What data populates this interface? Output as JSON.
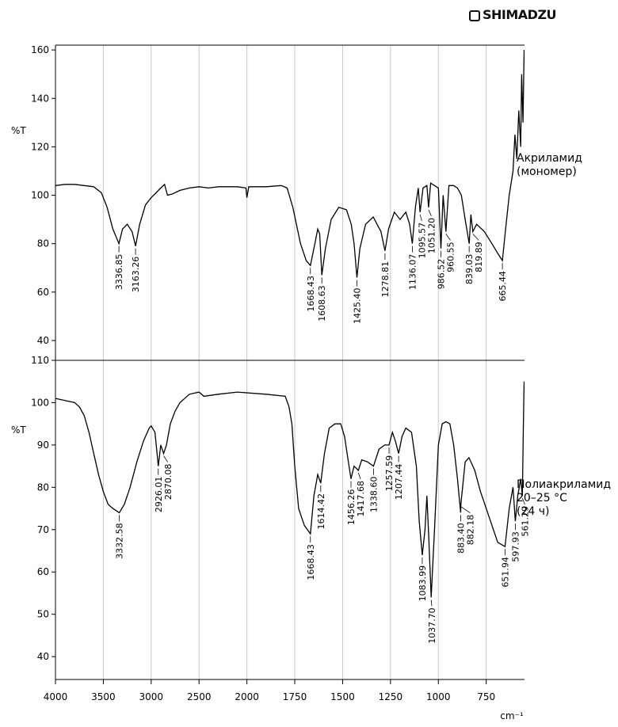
{
  "logo": "SHIMADZU",
  "chart_data": [
    {
      "type": "line",
      "ylabel": "%T",
      "ylim": [
        31.8,
        162
      ],
      "yticks": [
        40,
        60,
        80,
        100,
        120,
        140,
        160
      ],
      "grid": true,
      "x": [
        4000,
        3900,
        3800,
        3700,
        3600,
        3520,
        3460,
        3400,
        3336.85,
        3300,
        3250,
        3200,
        3163.26,
        3120,
        3060,
        3000,
        2950,
        2900,
        2860,
        2830,
        2780,
        2700,
        2600,
        2500,
        2400,
        2300,
        2100,
        2010,
        2000,
        1990,
        1900,
        1820,
        1790,
        1760,
        1720,
        1690,
        1668.43,
        1645,
        1630,
        1620,
        1608.63,
        1590,
        1560,
        1520,
        1480,
        1455,
        1440,
        1425.4,
        1410,
        1380,
        1340,
        1300,
        1278.81,
        1260,
        1230,
        1200,
        1170,
        1150,
        1136.07,
        1120,
        1105,
        1095.57,
        1080,
        1060,
        1051.2,
        1040,
        1020,
        1000,
        986.52,
        975,
        960.55,
        945,
        920,
        900,
        880,
        860,
        839.03,
        830,
        819.89,
        800,
        760,
        720,
        690,
        665.44,
        650,
        630,
        610,
        600,
        590,
        580,
        570,
        565,
        558,
        552
      ],
      "series": [
        {
          "name": "Акриламид (мономер)",
          "color": "#000000",
          "values": [
            104,
            104.5,
            104.5,
            104,
            103.5,
            101,
            95,
            86,
            80,
            86,
            88,
            85,
            79,
            88,
            96,
            99,
            101,
            103,
            104.5,
            100,
            100.5,
            102,
            103,
            103.5,
            103,
            103.5,
            103.5,
            103,
            99,
            103.5,
            103.5,
            104,
            103,
            95,
            80,
            73,
            71,
            80,
            86,
            84,
            67,
            78,
            90,
            95,
            94,
            88,
            80,
            66,
            78,
            88,
            91,
            85,
            77,
            86,
            93,
            90,
            93,
            88,
            80,
            95,
            103,
            93,
            103,
            104,
            95,
            105,
            104,
            103,
            78,
            100,
            85,
            104,
            104,
            103,
            100,
            90,
            80,
            92,
            85,
            88,
            85,
            80,
            76,
            73,
            85,
            100,
            110,
            125,
            115,
            135,
            120,
            150,
            130,
            160
          ]
        }
      ],
      "peaks": [
        {
          "value": 3336.85,
          "label": "3336.85"
        },
        {
          "value": 3163.26,
          "label": "3163.26"
        },
        {
          "value": 1668.43,
          "label": "1668.43"
        },
        {
          "value": 1608.63,
          "label": "1608.63"
        },
        {
          "value": 1425.4,
          "label": "1425.40"
        },
        {
          "value": 1278.81,
          "label": "1278.81"
        },
        {
          "value": 1136.07,
          "label": "1136.07"
        },
        {
          "value": 1095.57,
          "label": "1095.57"
        },
        {
          "value": 1051.2,
          "label": "1051.20"
        },
        {
          "value": 986.52,
          "label": "986.52"
        },
        {
          "value": 960.55,
          "label": "960.55"
        },
        {
          "value": 839.03,
          "label": "839.03"
        },
        {
          "value": 819.89,
          "label": "819.89"
        },
        {
          "value": 665.44,
          "label": "665.44"
        }
      ]
    },
    {
      "type": "line",
      "ylabel": "%T",
      "xlabel": "cm⁻¹",
      "xlim": [
        4000,
        550
      ],
      "xticks": [
        4000,
        3500,
        3000,
        2500,
        2000,
        1750,
        1500,
        1250,
        1000,
        750
      ],
      "ylim": [
        34.6,
        110
      ],
      "yticks": [
        40,
        50,
        60,
        70,
        80,
        90,
        100,
        110
      ],
      "grid": true,
      "x": [
        4000,
        3900,
        3800,
        3750,
        3700,
        3650,
        3600,
        3550,
        3500,
        3450,
        3400,
        3332.58,
        3280,
        3220,
        3150,
        3080,
        3020,
        3000,
        2960,
        2926.01,
        2900,
        2870.08,
        2840,
        2800,
        2750,
        2700,
        2600,
        2500,
        2450,
        2300,
        2100,
        1900,
        1800,
        1780,
        1765,
        1750,
        1730,
        1700,
        1668.43,
        1650,
        1630,
        1614.42,
        1595,
        1570,
        1540,
        1510,
        1490,
        1470,
        1456.26,
        1440,
        1417.68,
        1400,
        1370,
        1338.6,
        1310,
        1280,
        1257.59,
        1240,
        1225,
        1207.44,
        1190,
        1170,
        1140,
        1115,
        1100,
        1083.99,
        1070,
        1060,
        1050,
        1037.7,
        1020,
        1000,
        980,
        960,
        940,
        920,
        900,
        883.4,
        882.18,
        860,
        840,
        810,
        780,
        750,
        720,
        690,
        651.94,
        630,
        610,
        597.93,
        585,
        570,
        561.29,
        556,
        552
      ],
      "series": [
        {
          "name": "Полиакриламид 20–25 °C (24 ч)",
          "color": "#000000",
          "values": [
            101,
            100.5,
            100,
            99,
            97,
            93,
            88,
            83,
            79,
            76,
            75,
            74,
            76,
            80,
            86,
            91,
            94,
            94.5,
            93,
            85,
            90,
            88,
            90,
            95,
            98,
            100,
            102,
            102.5,
            101.5,
            102,
            102.5,
            102,
            101.5,
            99,
            95,
            85,
            75,
            71,
            69,
            78,
            83,
            81,
            88,
            94,
            95,
            95,
            92,
            86,
            82,
            85,
            84,
            86.5,
            86,
            85,
            89,
            90,
            90,
            93,
            91,
            88,
            92,
            94,
            93,
            85,
            72,
            64,
            70,
            78,
            68,
            54,
            70,
            90,
            95,
            95.5,
            95,
            90,
            82,
            74,
            76,
            86,
            87,
            84,
            79,
            75,
            71,
            67,
            66,
            75,
            80,
            72,
            78,
            82,
            78,
            95,
            105
          ]
        }
      ],
      "peaks": [
        {
          "value": 3332.58,
          "label": "3332.58"
        },
        {
          "value": 2926.01,
          "label": "2926.01"
        },
        {
          "value": 2870.08,
          "label": "2870.08"
        },
        {
          "value": 1668.43,
          "label": "1668.43"
        },
        {
          "value": 1614.42,
          "label": "1614.42"
        },
        {
          "value": 1456.26,
          "label": "1456.26"
        },
        {
          "value": 1417.68,
          "label": "1417.68"
        },
        {
          "value": 1338.6,
          "label": "1338.60"
        },
        {
          "value": 1257.59,
          "label": "1257.59"
        },
        {
          "value": 1207.44,
          "label": "1207.44"
        },
        {
          "value": 1083.99,
          "label": "1083.99"
        },
        {
          "value": 1037.7,
          "label": "1037.70"
        },
        {
          "value": 883.4,
          "label": "883.40"
        },
        {
          "value": 882.18,
          "label": "882.18"
        },
        {
          "value": 651.94,
          "label": "651.94"
        },
        {
          "value": 597.93,
          "label": "597.93"
        },
        {
          "value": 561.29,
          "label": "561.29"
        }
      ]
    }
  ]
}
